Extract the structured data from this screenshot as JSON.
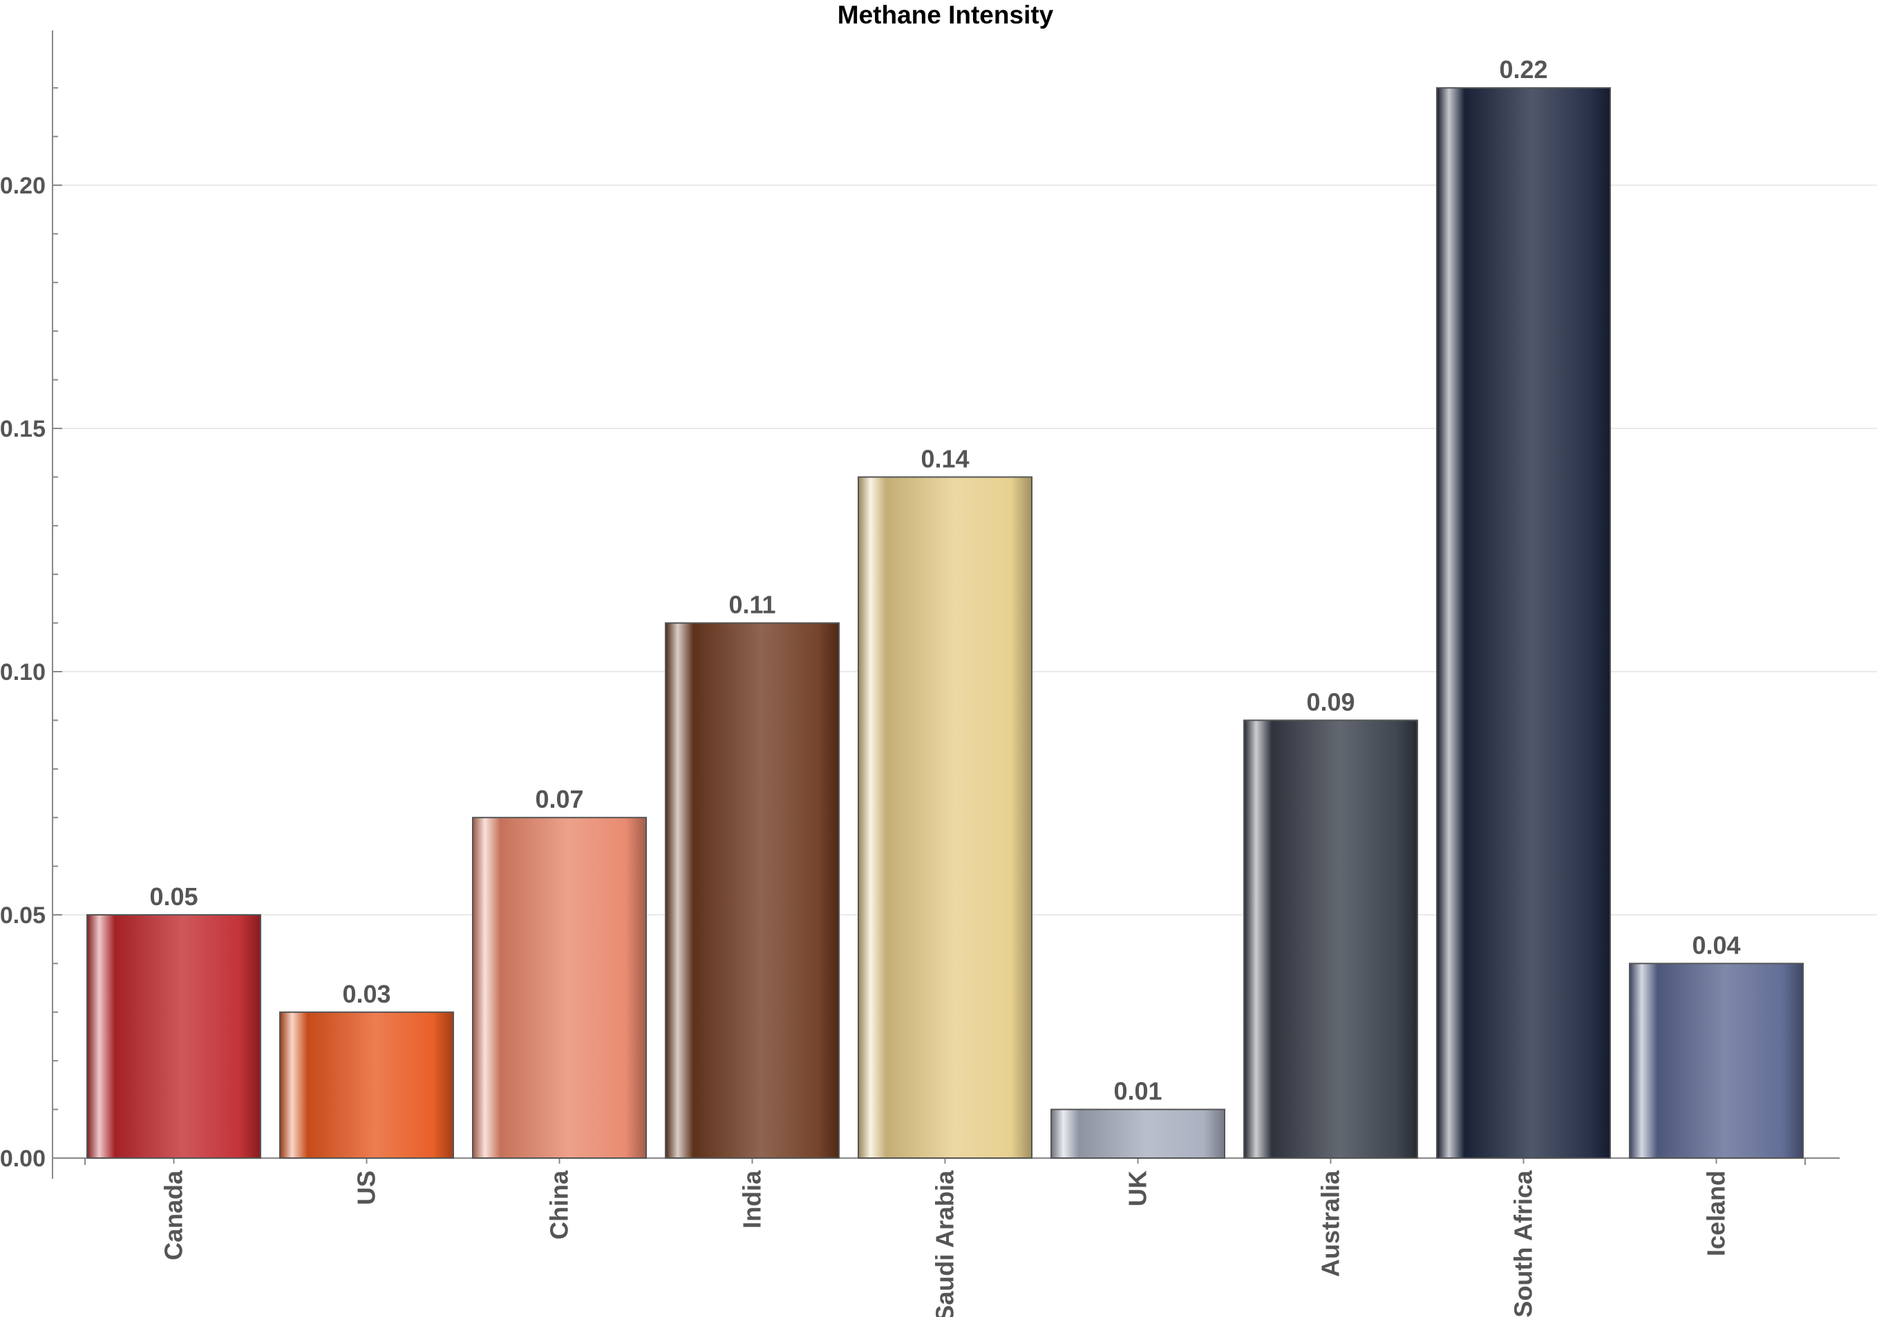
{
  "chart_data": {
    "type": "bar",
    "title": "Methane Intensity",
    "xlabel": "",
    "ylabel": "",
    "categories": [
      "Canada",
      "US",
      "China",
      "India",
      "Saudi Arabia",
      "UK",
      "Australia",
      "South Africa",
      "Iceland"
    ],
    "values": [
      0.05,
      0.03,
      0.07,
      0.11,
      0.14,
      0.01,
      0.09,
      0.22,
      0.04
    ],
    "value_labels": [
      "0.05",
      "0.03",
      "0.07",
      "0.11",
      "0.14",
      "0.01",
      "0.09",
      "0.22",
      "0.04"
    ],
    "ylim": [
      0,
      0.2275
    ],
    "yticks": [
      0.0,
      0.05,
      0.1,
      0.15,
      0.2
    ],
    "ytick_labels": [
      "0.00",
      "0.05",
      "0.10",
      "0.15",
      "0.20"
    ],
    "grid": true,
    "legend": "none",
    "colors": [
      "#c0282d",
      "#e8581e",
      "#e8866a",
      "#6e3a20",
      "#e6cd8a",
      "#a7adbd",
      "#363c48",
      "#1e2740",
      "#5b6690"
    ]
  }
}
